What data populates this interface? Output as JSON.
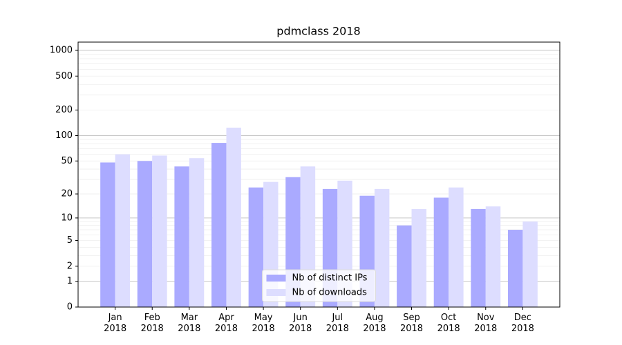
{
  "chart_data": {
    "type": "bar",
    "title": "pdmclass 2018",
    "categories": [
      "Jan\n2018",
      "Feb\n2018",
      "Mar\n2018",
      "Apr\n2018",
      "May\n2018",
      "Jun\n2018",
      "Jul\n2018",
      "Aug\n2018",
      "Sep\n2018",
      "Oct\n2018",
      "Nov\n2018",
      "Dec\n2018"
    ],
    "series": [
      {
        "name": "Nb of distinct IPs",
        "color": "#aaaaff",
        "values": [
          48,
          50,
          43,
          82,
          24,
          32,
          23,
          19,
          8,
          18,
          13,
          7
        ]
      },
      {
        "name": "Nb of downloads",
        "color": "#ddddff",
        "values": [
          60,
          58,
          54,
          124,
          28,
          43,
          29,
          23,
          13,
          24,
          14,
          9
        ]
      }
    ],
    "yscale": "log1p",
    "ylim": [
      0,
      1250
    ],
    "yticks": [
      0,
      1,
      2,
      5,
      10,
      20,
      50,
      100,
      200,
      500,
      1000
    ],
    "grid_major": [
      1,
      10,
      100,
      1000
    ],
    "grid_minor": [
      2,
      3,
      4,
      5,
      6,
      7,
      8,
      9,
      20,
      30,
      40,
      50,
      60,
      70,
      80,
      90,
      200,
      300,
      400,
      500,
      600,
      700,
      800,
      900
    ],
    "legend": "lower center"
  }
}
